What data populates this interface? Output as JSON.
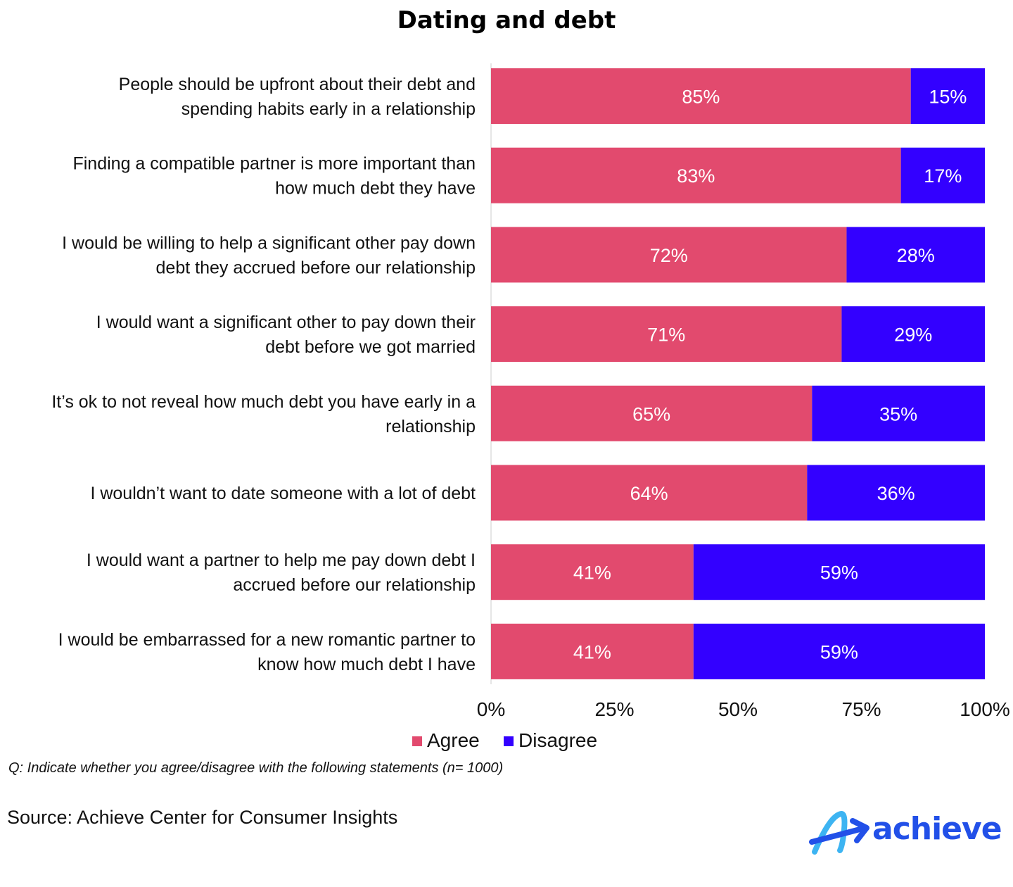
{
  "chart_data": {
    "type": "bar",
    "orientation": "horizontal",
    "stacked": true,
    "title": "Dating and debt",
    "categories": [
      [
        "People should be upfront about their debt and",
        "spending habits early in a relationship"
      ],
      [
        "Finding a compatible partner is more important than",
        "how much debt they have"
      ],
      [
        "I would be willing to help a significant other pay down",
        "debt they accrued before our relationship"
      ],
      [
        "I would want a significant other to pay down their",
        "debt before we got married"
      ],
      [
        "It’s ok to not reveal how much debt you have early in a",
        "relationship"
      ],
      [
        "I wouldn’t want to date someone with a lot of debt"
      ],
      [
        "I would want a partner to help me pay down debt I",
        "accrued before our relationship"
      ],
      [
        "I would be embarrassed for a new romantic partner to",
        "know how much debt I have"
      ]
    ],
    "series": [
      {
        "name": "Agree",
        "color": "#e24a6e",
        "values": [
          85,
          83,
          72,
          71,
          65,
          64,
          41,
          41
        ]
      },
      {
        "name": "Disagree",
        "color": "#3300ff",
        "values": [
          15,
          17,
          28,
          29,
          35,
          36,
          59,
          59
        ]
      }
    ],
    "xlim": [
      0,
      100
    ],
    "xticks": [
      0,
      25,
      50,
      75,
      100
    ],
    "xtick_labels": [
      "0%",
      "25%",
      "50%",
      "75%",
      "100%"
    ],
    "value_suffix": "%",
    "legend": "bottom-center",
    "grid": false
  },
  "note": "Q: Indicate whether you agree/disagree with the following statements (n= 1000)",
  "source": "Source: Achieve Center for Consumer Insights",
  "logo_text": "achieve",
  "colors": {
    "logo": "#2250e8",
    "logo_light": "#3db4f2"
  }
}
